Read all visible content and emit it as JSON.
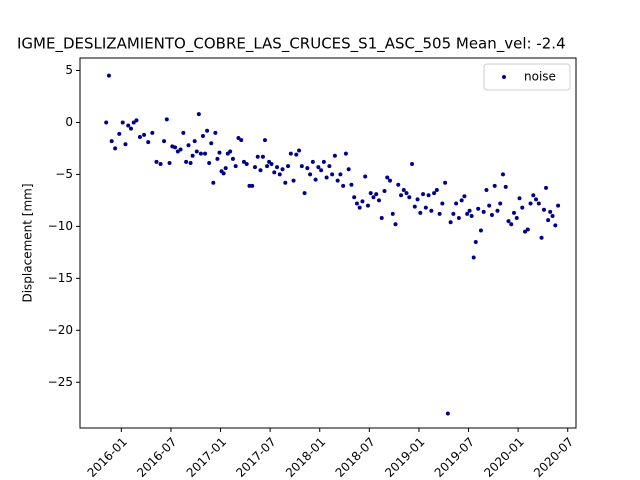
{
  "chart_data": {
    "type": "scatter",
    "title": "IGME_DESLIZAMIENTO_COBRE_LAS_CRUCES_S1_ASC_505    Mean_vel: -2.4",
    "y_label": "Displacement [mm]",
    "legend_loc": "upper right",
    "xlim": [
      "2015-08",
      "2020-08"
    ],
    "xticks": [
      "2016-01",
      "2016-07",
      "2017-01",
      "2017-07",
      "2018-01",
      "2018-07",
      "2019-01",
      "2019-07",
      "2020-01",
      "2020-07"
    ],
    "ylim": [
      -29.4,
      6.2
    ],
    "yticks": [
      5,
      0,
      {
        "value": -5,
        "label": "−5"
      },
      {
        "value": -10,
        "label": "−10"
      },
      {
        "value": -15,
        "label": "−15"
      },
      {
        "value": -20,
        "label": "−20"
      },
      {
        "value": -25,
        "label": "−25"
      }
    ],
    "series": [
      {
        "name": "noise",
        "color": "#00008b",
        "x": [
          "2015-11",
          "2015-11",
          "2015-11",
          "2015-12",
          "2015-12",
          "2016-01",
          "2016-01",
          "2016-01",
          "2016-02",
          "2016-02",
          "2016-02",
          "2016-03",
          "2016-03",
          "2016-04",
          "2016-04",
          "2016-05",
          "2016-05",
          "2016-06",
          "2016-06",
          "2016-06",
          "2016-07",
          "2016-07",
          "2016-07",
          "2016-08",
          "2016-08",
          "2016-08",
          "2016-09",
          "2016-09",
          "2016-09",
          "2016-09",
          "2016-10",
          "2016-10",
          "2016-10",
          "2016-10",
          "2016-11",
          "2016-11",
          "2016-11",
          "2016-11",
          "2016-12",
          "2016-12",
          "2016-12",
          "2016-12",
          "2017-01",
          "2017-01",
          "2017-01",
          "2017-01",
          "2017-02",
          "2017-02",
          "2017-02",
          "2017-03",
          "2017-03",
          "2017-03",
          "2017-04",
          "2017-04",
          "2017-04",
          "2017-05",
          "2017-05",
          "2017-05",
          "2017-06",
          "2017-06",
          "2017-06",
          "2017-06",
          "2017-07",
          "2017-07",
          "2017-07",
          "2017-08",
          "2017-08",
          "2017-08",
          "2017-09",
          "2017-09",
          "2017-09",
          "2017-10",
          "2017-10",
          "2017-10",
          "2017-11",
          "2017-11",
          "2017-11",
          "2017-12",
          "2017-12",
          "2017-12",
          "2018-01",
          "2018-01",
          "2018-01",
          "2018-02",
          "2018-02",
          "2018-02",
          "2018-03",
          "2018-03",
          "2018-03",
          "2018-04",
          "2018-04",
          "2018-04",
          "2018-05",
          "2018-05",
          "2018-05",
          "2018-06",
          "2018-06",
          "2018-06",
          "2018-07",
          "2018-07",
          "2018-07",
          "2018-08",
          "2018-08",
          "2018-08",
          "2018-09",
          "2018-09",
          "2018-09",
          "2018-10",
          "2018-10",
          "2018-10",
          "2018-11",
          "2018-11",
          "2018-11",
          "2018-12",
          "2018-12",
          "2018-12",
          "2019-01",
          "2019-01",
          "2019-01",
          "2019-02",
          "2019-02",
          "2019-02",
          "2019-03",
          "2019-03",
          "2019-03",
          "2019-04",
          "2019-04",
          "2019-04",
          "2019-05",
          "2019-05",
          "2019-05",
          "2019-06",
          "2019-06",
          "2019-06",
          "2019-07",
          "2019-07",
          "2019-07",
          "2019-07",
          "2019-08",
          "2019-08",
          "2019-08",
          "2019-09",
          "2019-09",
          "2019-09",
          "2019-10",
          "2019-10",
          "2019-10",
          "2019-11",
          "2019-11",
          "2019-11",
          "2019-12",
          "2019-12",
          "2019-12",
          "2020-01",
          "2020-01",
          "2020-01",
          "2020-02",
          "2020-02",
          "2020-02",
          "2020-03",
          "2020-03",
          "2020-03",
          "2020-04",
          "2020-04",
          "2020-04",
          "2020-04",
          "2020-05",
          "2020-05",
          "2020-05"
        ],
        "values": [
          0,
          4.5,
          -1.8,
          -2.5,
          -1.1,
          0,
          -2.1,
          -0.3,
          -0.6,
          0,
          0.2,
          -1.4,
          -1.2,
          -1.9,
          -1.0,
          -3.8,
          -4.0,
          -1.8,
          0.3,
          -3.9,
          -2.3,
          -2.4,
          -2.8,
          -2.6,
          -1.0,
          -3.8,
          -2.2,
          -3.9,
          -3.2,
          -1.8,
          -2.8,
          0.8,
          -3.0,
          -1.3,
          -3.0,
          -0.8,
          -3.9,
          -2.0,
          -5.8,
          -1.0,
          -3.5,
          -2.9,
          -4.7,
          -4.9,
          -4.4,
          -3.0,
          -2.8,
          -3.5,
          -4.2,
          -1.5,
          -1.7,
          -3.8,
          -4.0,
          -6.1,
          -6.1,
          -4.3,
          -3.3,
          -4.6,
          -3.3,
          -1.7,
          -4.2,
          -3.8,
          -4.0,
          -4.8,
          -4.3,
          -5.0,
          -4.5,
          -5.8,
          -4.2,
          -3.0,
          -5.6,
          -3.1,
          -2.7,
          -4.2,
          -6.8,
          -4.4,
          -5.0,
          -3.8,
          -5.5,
          -4.3,
          -4.6,
          -3.8,
          -5.3,
          -4.2,
          -5.0,
          -3.2,
          -5.6,
          -5.0,
          -6.1,
          -3.0,
          -4.5,
          -6.0,
          -7.2,
          -7.8,
          -8.2,
          -7.6,
          -5.2,
          -8.0,
          -6.8,
          -7.2,
          -6.9,
          -7.5,
          -9.2,
          -6.6,
          -5.3,
          -5.6,
          -8.8,
          -9.8,
          -6.0,
          -7.0,
          -6.5,
          -6.8,
          -7.2,
          -4.0,
          -8.1,
          -7.4,
          -8.7,
          -6.9,
          -8.2,
          -7.0,
          -8.5,
          -6.8,
          -6.5,
          -8.8,
          -7.8,
          -5.8,
          -28.0,
          -9.6,
          -8.8,
          -7.8,
          -9.2,
          -7.5,
          -7.1,
          -8.8,
          -8.5,
          -9.0,
          -13.0,
          -11.5,
          -8.3,
          -10.4,
          -8.6,
          -6.5,
          -8.0,
          -8.9,
          -6.1,
          -8.5,
          -7.8,
          -5.0,
          -6.2,
          -9.5,
          -9.8,
          -8.7,
          -9.2,
          -7.3,
          -8.2,
          -10.5,
          -10.3,
          -7.8,
          -7.0,
          -7.4,
          -7.8,
          -11.1,
          -8.4,
          -6.3,
          -9.4,
          -8.6,
          -9.0,
          -9.9,
          -8.0
        ]
      }
    ]
  }
}
